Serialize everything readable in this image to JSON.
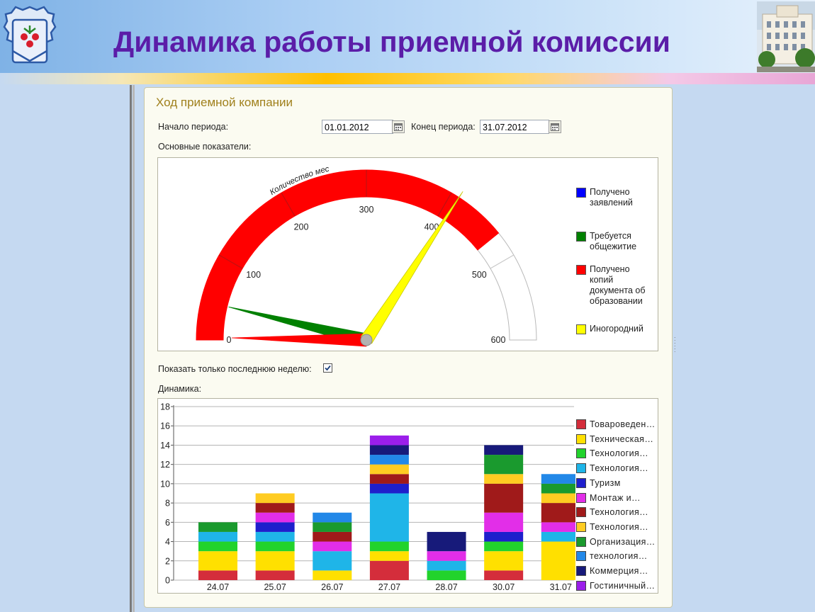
{
  "slide": {
    "title": "Динамика работы приемной комиссии"
  },
  "form": {
    "title": "Ход приемной компании",
    "period_start_label": "Начало периода:",
    "period_start_value": "01.01.2012",
    "period_end_label": "Конец периода:",
    "period_end_value": "31.07.2012",
    "indicators_label": "Основные показатели:",
    "last_week_label": "Показать только последнюю неделю:",
    "last_week_checked": true,
    "dynamics_label": "Динамика:"
  },
  "chart_data": [
    {
      "type": "gauge",
      "scale_label": "Количество мест",
      "min": 0,
      "max": 600,
      "ticks": [
        0,
        100,
        200,
        300,
        400,
        500,
        600
      ],
      "filled_band_max": 470,
      "band_color": "#ff0000",
      "needles": [
        {
          "name": "Получено заявлений",
          "value": 0,
          "color": "#0000ff"
        },
        {
          "name": "Требуется общежитие",
          "value": 45,
          "color": "#008000"
        },
        {
          "name": "Получено копий документа об образовании",
          "value": 3,
          "color": "#ff0000"
        },
        {
          "name": "Иногородний",
          "value": 410,
          "color": "#ffff00"
        }
      ],
      "legend": [
        {
          "label": "Получено\nзаявлений",
          "color": "#0000ff"
        },
        {
          "label": "Требуется\nобщежитие",
          "color": "#008000"
        },
        {
          "label": "Получено\nкопий\nдокумента об\nобразовании",
          "color": "#ff0000"
        },
        {
          "label": "Иногородний",
          "color": "#ffff00"
        }
      ]
    },
    {
      "type": "bar",
      "stacked": true,
      "categories": [
        "24.07",
        "25.07",
        "26.07",
        "27.07",
        "28.07",
        "30.07",
        "31.07"
      ],
      "ylim": [
        0,
        18
      ],
      "yticks": [
        0,
        2,
        4,
        6,
        8,
        10,
        12,
        14,
        16,
        18
      ],
      "grid": true,
      "legend_position": "right",
      "series": [
        {
          "name": "Товароведен…",
          "color": "#d42d3b",
          "values": [
            1,
            1,
            0,
            2,
            0,
            1,
            0
          ]
        },
        {
          "name": "Техническая…",
          "color": "#ffe000",
          "values": [
            2,
            2,
            1,
            1,
            0,
            2,
            4
          ]
        },
        {
          "name": "Технология…",
          "color": "#22d32c",
          "values": [
            1,
            1,
            0,
            1,
            1,
            1,
            0
          ]
        },
        {
          "name": "Технология…",
          "color": "#1fb5e8",
          "values": [
            1,
            1,
            2,
            5,
            1,
            0,
            1
          ]
        },
        {
          "name": "Туризм",
          "color": "#1f1fcc",
          "values": [
            0,
            1,
            0,
            1,
            0,
            1,
            0
          ]
        },
        {
          "name": "Монтаж и…",
          "color": "#e22ee8",
          "values": [
            0,
            1,
            1,
            0,
            1,
            2,
            1
          ]
        },
        {
          "name": "Технология…",
          "color": "#a01a1a",
          "values": [
            0,
            1,
            1,
            1,
            0,
            3,
            2
          ]
        },
        {
          "name": "Технология…",
          "color": "#ffcc22",
          "values": [
            0,
            1,
            0,
            1,
            0,
            1,
            1
          ]
        },
        {
          "name": "Организация…",
          "color": "#1a9a2e",
          "values": [
            1,
            0,
            1,
            0,
            0,
            2,
            1
          ]
        },
        {
          "name": "технология…",
          "color": "#2288e8",
          "values": [
            0,
            0,
            1,
            1,
            0,
            0,
            1
          ]
        },
        {
          "name": "Коммерция…",
          "color": "#171a7a",
          "values": [
            0,
            0,
            0,
            1,
            2,
            1,
            0
          ]
        },
        {
          "name": "Гостиничный…",
          "color": "#9b1eea",
          "values": [
            0,
            0,
            0,
            1,
            0,
            0,
            0
          ]
        }
      ]
    }
  ]
}
